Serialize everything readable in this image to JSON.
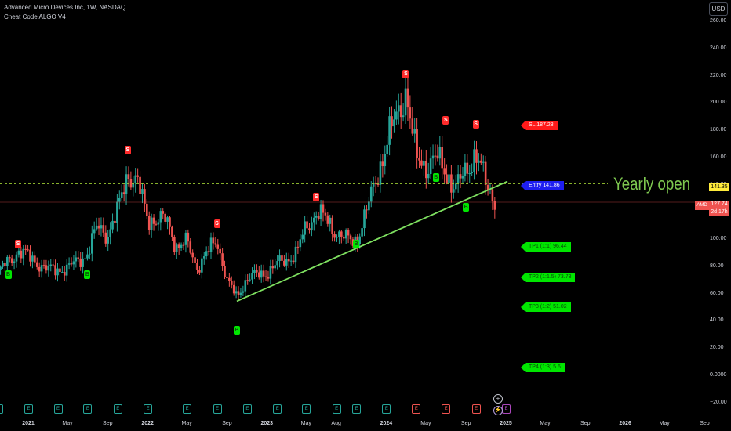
{
  "header": {
    "title": "Advanced Micro Devices Inc, 1W, NASDAQ",
    "indicator": "Cheat Code ALGO V4"
  },
  "currency_button": "USD",
  "annotation": {
    "text": "Yearly open"
  },
  "price_scale": {
    "ticker_label": "AMD",
    "current_price": "127.74",
    "countdown": "2d 17h",
    "yearly_open_price": "141.35"
  },
  "levels": {
    "sl": "SL 187.28",
    "entry": "Entry 141.86",
    "tp1": "TP1 (1:1) 96.44",
    "tp2": "TP2 (1:1.5) 73.73",
    "tp3": "TP3 (1:2) 51.02",
    "tp4": "TP4 (1:3) 5.6"
  },
  "colors": {
    "up": "#26a69a",
    "down": "#ef5350",
    "buy_signal": "#00e600",
    "sell_signal": "#ff2b2b",
    "trendline": "#7ee060",
    "yearly_open_line": "#9ccc32",
    "entry_tag": "#1e1ef0",
    "background": "#000000"
  },
  "chart_data": {
    "type": "candlestick",
    "title": "Advanced Micro Devices Inc, 1W, NASDAQ",
    "y_ticks": [
      -20,
      0,
      20,
      40,
      60,
      80,
      100,
      120,
      140,
      160,
      180,
      200,
      220,
      240,
      260
    ],
    "y_tick_labels": [
      "−20.00",
      "0.0000",
      "20.00",
      "40.00",
      "60.00",
      "80.00",
      "100.00",
      "120.00",
      "140.00",
      "160.00",
      "180.00",
      "200.00",
      "220.00",
      "240.00",
      "260.00"
    ],
    "ylim": [
      -25,
      272
    ],
    "x_tick_labels": [
      {
        "label": "2021",
        "date": "2021-01"
      },
      {
        "label": "May",
        "date": "2021-05"
      },
      {
        "label": "Sep",
        "date": "2021-09"
      },
      {
        "label": "2022",
        "date": "2022-01"
      },
      {
        "label": "May",
        "date": "2022-05"
      },
      {
        "label": "Sep",
        "date": "2022-09"
      },
      {
        "label": "2023",
        "date": "2023-01"
      },
      {
        "label": "May",
        "date": "2023-05"
      },
      {
        "label": "Aug",
        "date": "2023-08"
      },
      {
        "label": "2024",
        "date": "2024-01"
      },
      {
        "label": "May",
        "date": "2024-05"
      },
      {
        "label": "Sep",
        "date": "2024-09"
      },
      {
        "label": "2025",
        "date": "2025-01"
      },
      {
        "label": "May",
        "date": "2025-05"
      },
      {
        "label": "Sep",
        "date": "2025-09"
      },
      {
        "label": "2026",
        "date": "2026-01"
      },
      {
        "label": "May",
        "date": "2026-05"
      },
      {
        "label": "Sep",
        "date": "2026-09"
      }
    ],
    "close_price_path": [
      [
        "2020-10",
        76
      ],
      [
        "2020-12",
        92
      ],
      [
        "2021-01",
        88
      ],
      [
        "2021-03",
        78
      ],
      [
        "2021-05",
        79
      ],
      [
        "2021-07",
        90
      ],
      [
        "2021-08",
        110
      ],
      [
        "2021-09",
        104
      ],
      [
        "2021-10",
        120
      ],
      [
        "2021-11",
        150
      ],
      [
        "2021-12",
        142
      ],
      [
        "2022-01",
        116
      ],
      [
        "2022-03",
        114
      ],
      [
        "2022-04",
        95
      ],
      [
        "2022-05",
        98
      ],
      [
        "2022-06",
        80
      ],
      [
        "2022-08",
        100
      ],
      [
        "2022-09",
        70
      ],
      [
        "2022-10",
        58
      ],
      [
        "2022-11",
        72
      ],
      [
        "2023-01",
        76
      ],
      [
        "2023-02",
        82
      ],
      [
        "2023-04",
        90
      ],
      [
        "2023-05",
        110
      ],
      [
        "2023-06",
        120
      ],
      [
        "2023-07",
        115
      ],
      [
        "2023-08",
        106
      ],
      [
        "2023-09",
        100
      ],
      [
        "2023-10",
        100
      ],
      [
        "2023-11",
        120
      ],
      [
        "2023-12",
        145
      ],
      [
        "2024-01",
        170
      ],
      [
        "2024-03",
        210
      ],
      [
        "2024-04",
        160
      ],
      [
        "2024-05",
        155
      ],
      [
        "2024-06",
        160
      ],
      [
        "2024-07",
        150
      ],
      [
        "2024-08",
        138
      ],
      [
        "2024-09",
        150
      ],
      [
        "2024-10",
        165
      ],
      [
        "2024-11",
        140
      ],
      [
        "2024-12",
        128
      ]
    ],
    "series": [
      {
        "name": "Yearly open",
        "type": "horizontal_line",
        "value": 141.35
      },
      {
        "name": "Trendline",
        "type": "line",
        "points": [
          [
            "2022-10",
            55
          ],
          [
            "2024-12",
            141.86
          ]
        ]
      }
    ],
    "signals": [
      {
        "type": "S",
        "date": "2020-12",
        "value": 97
      },
      {
        "type": "S",
        "date": "2021-11",
        "value": 166
      },
      {
        "type": "S",
        "date": "2022-08",
        "value": 112
      },
      {
        "type": "S",
        "date": "2023-06",
        "value": 132
      },
      {
        "type": "S",
        "date": "2024-03",
        "value": 222
      },
      {
        "type": "S",
        "date": "2024-07",
        "value": 188
      },
      {
        "type": "S",
        "date": "2024-10",
        "value": 185
      },
      {
        "type": "B",
        "date": "2020-11",
        "value": 75
      },
      {
        "type": "B",
        "date": "2021-07",
        "value": 75
      },
      {
        "type": "B",
        "date": "2022-10",
        "value": 34
      },
      {
        "type": "B",
        "date": "2023-10",
        "value": 97
      },
      {
        "type": "B",
        "date": "2024-06",
        "value": 146
      },
      {
        "type": "B",
        "date": "2024-09",
        "value": 124
      }
    ],
    "events": {
      "E": [
        "2020-10",
        "2021-01",
        "2021-04",
        "2021-07",
        "2021-10",
        "2022-01",
        "2022-05",
        "2022-08",
        "2022-11",
        "2023-02",
        "2023-05",
        "2023-08",
        "2023-10",
        "2024-01",
        "2024-04",
        "2024-07",
        "2024-10",
        "2025-01"
      ],
      "dividends": [
        "2024-12"
      ]
    },
    "grid": false,
    "legend": "top-left"
  }
}
